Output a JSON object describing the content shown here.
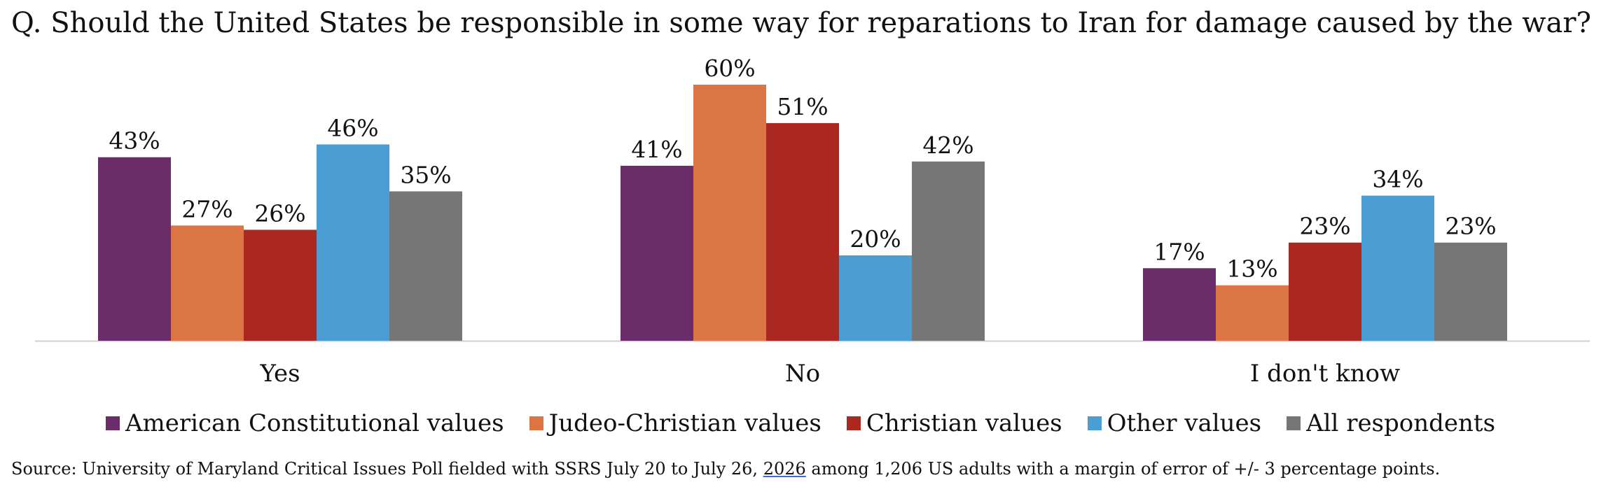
{
  "title": "Q. Should the United States be responsible in some way for reparations to Iran for damage caused by the war?",
  "chart_data": {
    "type": "bar",
    "categories": [
      "Yes",
      "No",
      "I don't know"
    ],
    "series": [
      {
        "name": "American Constitutional values",
        "color": "#6b2c6a",
        "values": [
          43,
          41,
          17
        ],
        "labels": [
          "43%",
          "41%",
          "17%"
        ]
      },
      {
        "name": "Judeo-Christian values",
        "color": "#dc7544",
        "values": [
          27,
          60,
          13
        ],
        "labels": [
          "27%",
          "60%",
          "13%"
        ]
      },
      {
        "name": "Christian values",
        "color": "#ab2820",
        "values": [
          26,
          51,
          23
        ],
        "labels": [
          "26%",
          "51%",
          "23%"
        ]
      },
      {
        "name": "Other values",
        "color": "#4a9ed4",
        "values": [
          46,
          20,
          34
        ],
        "labels": [
          "46%",
          "20%",
          "34%"
        ]
      },
      {
        "name": "All respondents",
        "color": "#767676",
        "values": [
          35,
          42,
          23
        ],
        "labels": [
          "35%",
          "42%",
          "23%"
        ]
      }
    ],
    "ylim": [
      0,
      60
    ],
    "legend_position": "bottom",
    "grid": false
  },
  "source": {
    "before": "Source: University of Maryland Critical Issues Poll fielded with SSRS July 20 to July 26, ",
    "year": "2026",
    "after": " among 1,206 US adults with a margin of error of +/- 3 percentage points."
  }
}
